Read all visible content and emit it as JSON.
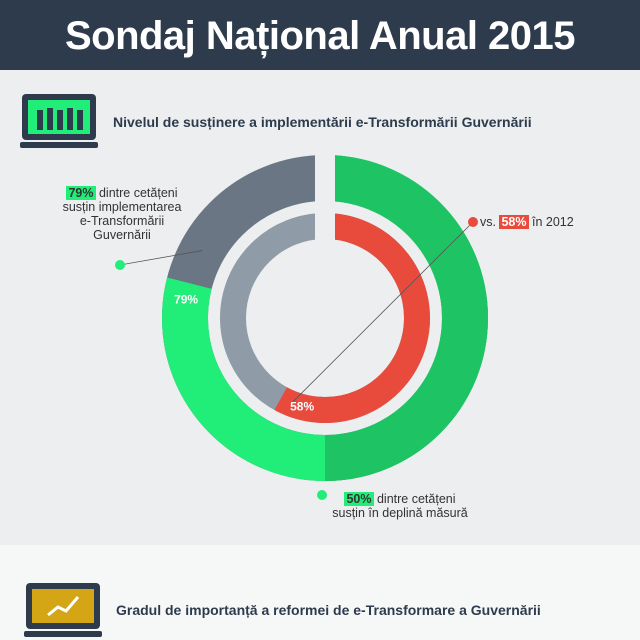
{
  "header": {
    "title": "Sondaj Național Anual 2015"
  },
  "chart_data": {
    "type": "donut",
    "title": "Nivelul de susținere a implementării e-Transformării Guvernării",
    "outer": {
      "values": [
        79,
        50
      ],
      "value_labels": [
        "79%",
        "50%"
      ],
      "colors": [
        "#20ee78",
        "#1ec463"
      ],
      "track_color": "#6a7684"
    },
    "inner": {
      "values": [
        58
      ],
      "value_labels": [
        "58%"
      ],
      "colors": [
        "#e84b3c"
      ],
      "track_color": "#8f9ba6"
    },
    "annotations": {
      "outer_total": "dintre cetățeni susțin implementarea e-Transformării Guvernării",
      "outer_full": "dintre cetățeni susțin în deplină măsură",
      "inner_before": "vs.",
      "inner_after": "în 2012"
    }
  },
  "section2": {
    "title": "Gradul de importanță a reformei de e-Transformare a Guvernării"
  }
}
